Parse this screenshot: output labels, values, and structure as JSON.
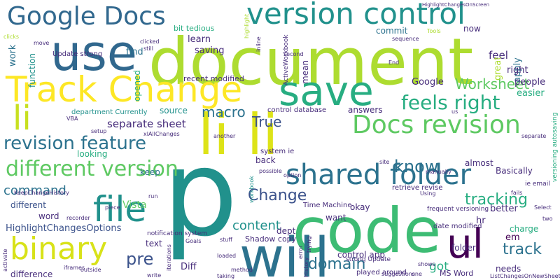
{
  "words": [
    "document",
    "use",
    "p",
    "code",
    "will",
    "save",
    "Track Change",
    "version control",
    "Google Docs",
    "li",
    "li li",
    "Docs revision",
    "feels right",
    "revision feature",
    "different version",
    "shared folder",
    "file",
    "binary",
    "ul",
    "Change",
    "True",
    "macro",
    "separate sheet",
    "Worksheet",
    "know",
    "tracking",
    "track",
    "command",
    "content",
    "domain",
    "pre",
    "HighlightChangesOptions",
    "got",
    "em",
    "okay",
    "want",
    "Vista",
    "word",
    "different",
    "text",
    "Diff",
    "difference",
    "looking",
    "keep",
    "source",
    "recent modified",
    "bit tedious",
    "learn",
    "saving",
    "find",
    "work",
    "Update strong",
    "commit",
    "now",
    "apply",
    "feel",
    "right",
    "people",
    "easier",
    "Google",
    "answers",
    "control database",
    "department Currently",
    "Basically",
    "almost",
    "Time Machine",
    "retrieve revise",
    "ie email",
    "back",
    "dept",
    "hr",
    "control app",
    "better",
    "charge",
    "needs",
    "folder",
    "MS Word",
    "Shadow copy",
    "strong Update",
    "played around",
    "frequent versioning",
    "date modified",
    "notification system",
    "system ie",
    "HighlightChangesOnScreen",
    "function",
    "opened",
    "great",
    "mean",
    "ActiveWorkbook",
    "versioning autosaving",
    "highlight",
    "clicks",
    "move",
    "clicked",
    "still",
    "Tools",
    "sequence",
    "second",
    "inline",
    "End",
    "VBA",
    "setup",
    "xlAllChanges",
    "another",
    "option",
    "possible",
    "manually",
    "site",
    "Using",
    "separate",
    "us",
    "Select",
    "two",
    "fails",
    "KeepChangeHistory",
    "recorder",
    "run",
    "piece",
    "Goals",
    "loaded",
    "stuff",
    "method",
    "error",
    "trying",
    "History",
    "iterations",
    "activate",
    "iframes",
    "outside",
    "write",
    "taking",
    "suggestions",
    "shows",
    "one",
    "ListChangesOnNewSheet",
    "workbook"
  ]
}
